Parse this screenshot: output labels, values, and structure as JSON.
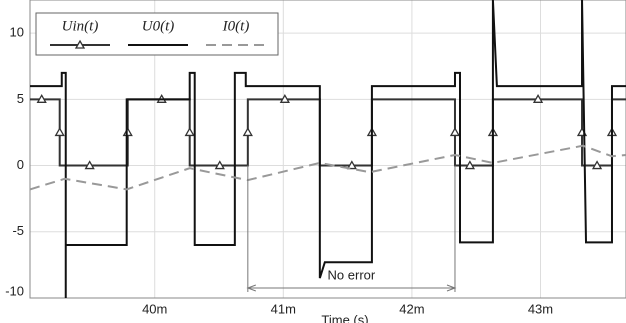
{
  "chart_data": {
    "type": "line",
    "xlabel": "Time (s)",
    "xlim": [
      0.03903,
      0.043665
    ],
    "xticks": [
      {
        "value": 0.04,
        "label": "40m"
      },
      {
        "value": 0.041,
        "label": "41m"
      },
      {
        "value": 0.042,
        "label": "42m"
      },
      {
        "value": 0.043,
        "label": "43m"
      }
    ],
    "ylim": [
      -10,
      12.5
    ],
    "yticks": [
      10,
      5,
      0,
      -5,
      -10
    ],
    "grid": true,
    "legend": "upper left",
    "annotation": {
      "text": "No error",
      "x": [
        0.040724,
        0.042335
      ]
    },
    "series": [
      {
        "name": "Uin(t)",
        "color": "#333333",
        "marker": "triangle",
        "x": [
          0.03903,
          0.039121,
          0.039261,
          0.039261,
          0.039261,
          0.039494,
          0.03979,
          0.03979,
          0.03979,
          0.040054,
          0.040272,
          0.040272,
          0.040272,
          0.040506,
          0.040724,
          0.040724,
          0.040724,
          0.041012,
          0.041284,
          0.041284,
          0.041533,
          0.041689,
          0.041689,
          0.041689,
          0.042335,
          0.042335,
          0.042335,
          0.042451,
          0.04263,
          0.04263,
          0.04263,
          0.042981,
          0.043323,
          0.043323,
          0.043323,
          0.04344,
          0.043556,
          0.043556,
          0.043556,
          0.043665
        ],
        "values": [
          5,
          5,
          5,
          2.5,
          0,
          0,
          0,
          2.5,
          5,
          5,
          5,
          2.5,
          0,
          0,
          0,
          2.5,
          5,
          5,
          5,
          0,
          0,
          0,
          2.5,
          5,
          5,
          2.5,
          0,
          0,
          0,
          2.5,
          5,
          5,
          5,
          2.5,
          0,
          0,
          0,
          2.5,
          5,
          5
        ]
      },
      {
        "name": "U0(t)",
        "color": "#111111",
        "x": [
          0.03903,
          0.039277,
          0.039277,
          0.039308,
          0.039308,
          0.039308,
          0.039782,
          0.039782,
          0.040272,
          0.040272,
          0.040311,
          0.040311,
          0.040623,
          0.040623,
          0.040708,
          0.040708,
          0.041284,
          0.041284,
          0.041323,
          0.041689,
          0.041689,
          0.042335,
          0.042335,
          0.042374,
          0.042374,
          0.04263,
          0.04263,
          0.042661,
          0.043323,
          0.043323,
          0.043354,
          0.043556,
          0.043556,
          0.043665
        ],
        "values": [
          6,
          6,
          7,
          7,
          -10,
          -6,
          -6,
          5,
          5,
          7,
          7,
          -6,
          -6,
          7,
          7,
          6,
          6,
          -8.5,
          -7.3,
          -7.3,
          6,
          6,
          7,
          7,
          -5.8,
          -5.8,
          12.5,
          6,
          6,
          12.5,
          -5.8,
          -5.8,
          6,
          6
        ]
      },
      {
        "name": "I0(t)",
        "color": "#999999",
        "dashed": true,
        "x": [
          0.03903,
          0.0393,
          0.039782,
          0.040272,
          0.040724,
          0.041284,
          0.041673,
          0.042335,
          0.04263,
          0.043331,
          0.043556,
          0.043665
        ],
        "values": [
          -1.8,
          -1,
          -1.8,
          -0.2,
          -1.1,
          0.2,
          -0.5,
          0.8,
          0.2,
          1.5,
          0.7,
          0.8
        ]
      }
    ]
  }
}
